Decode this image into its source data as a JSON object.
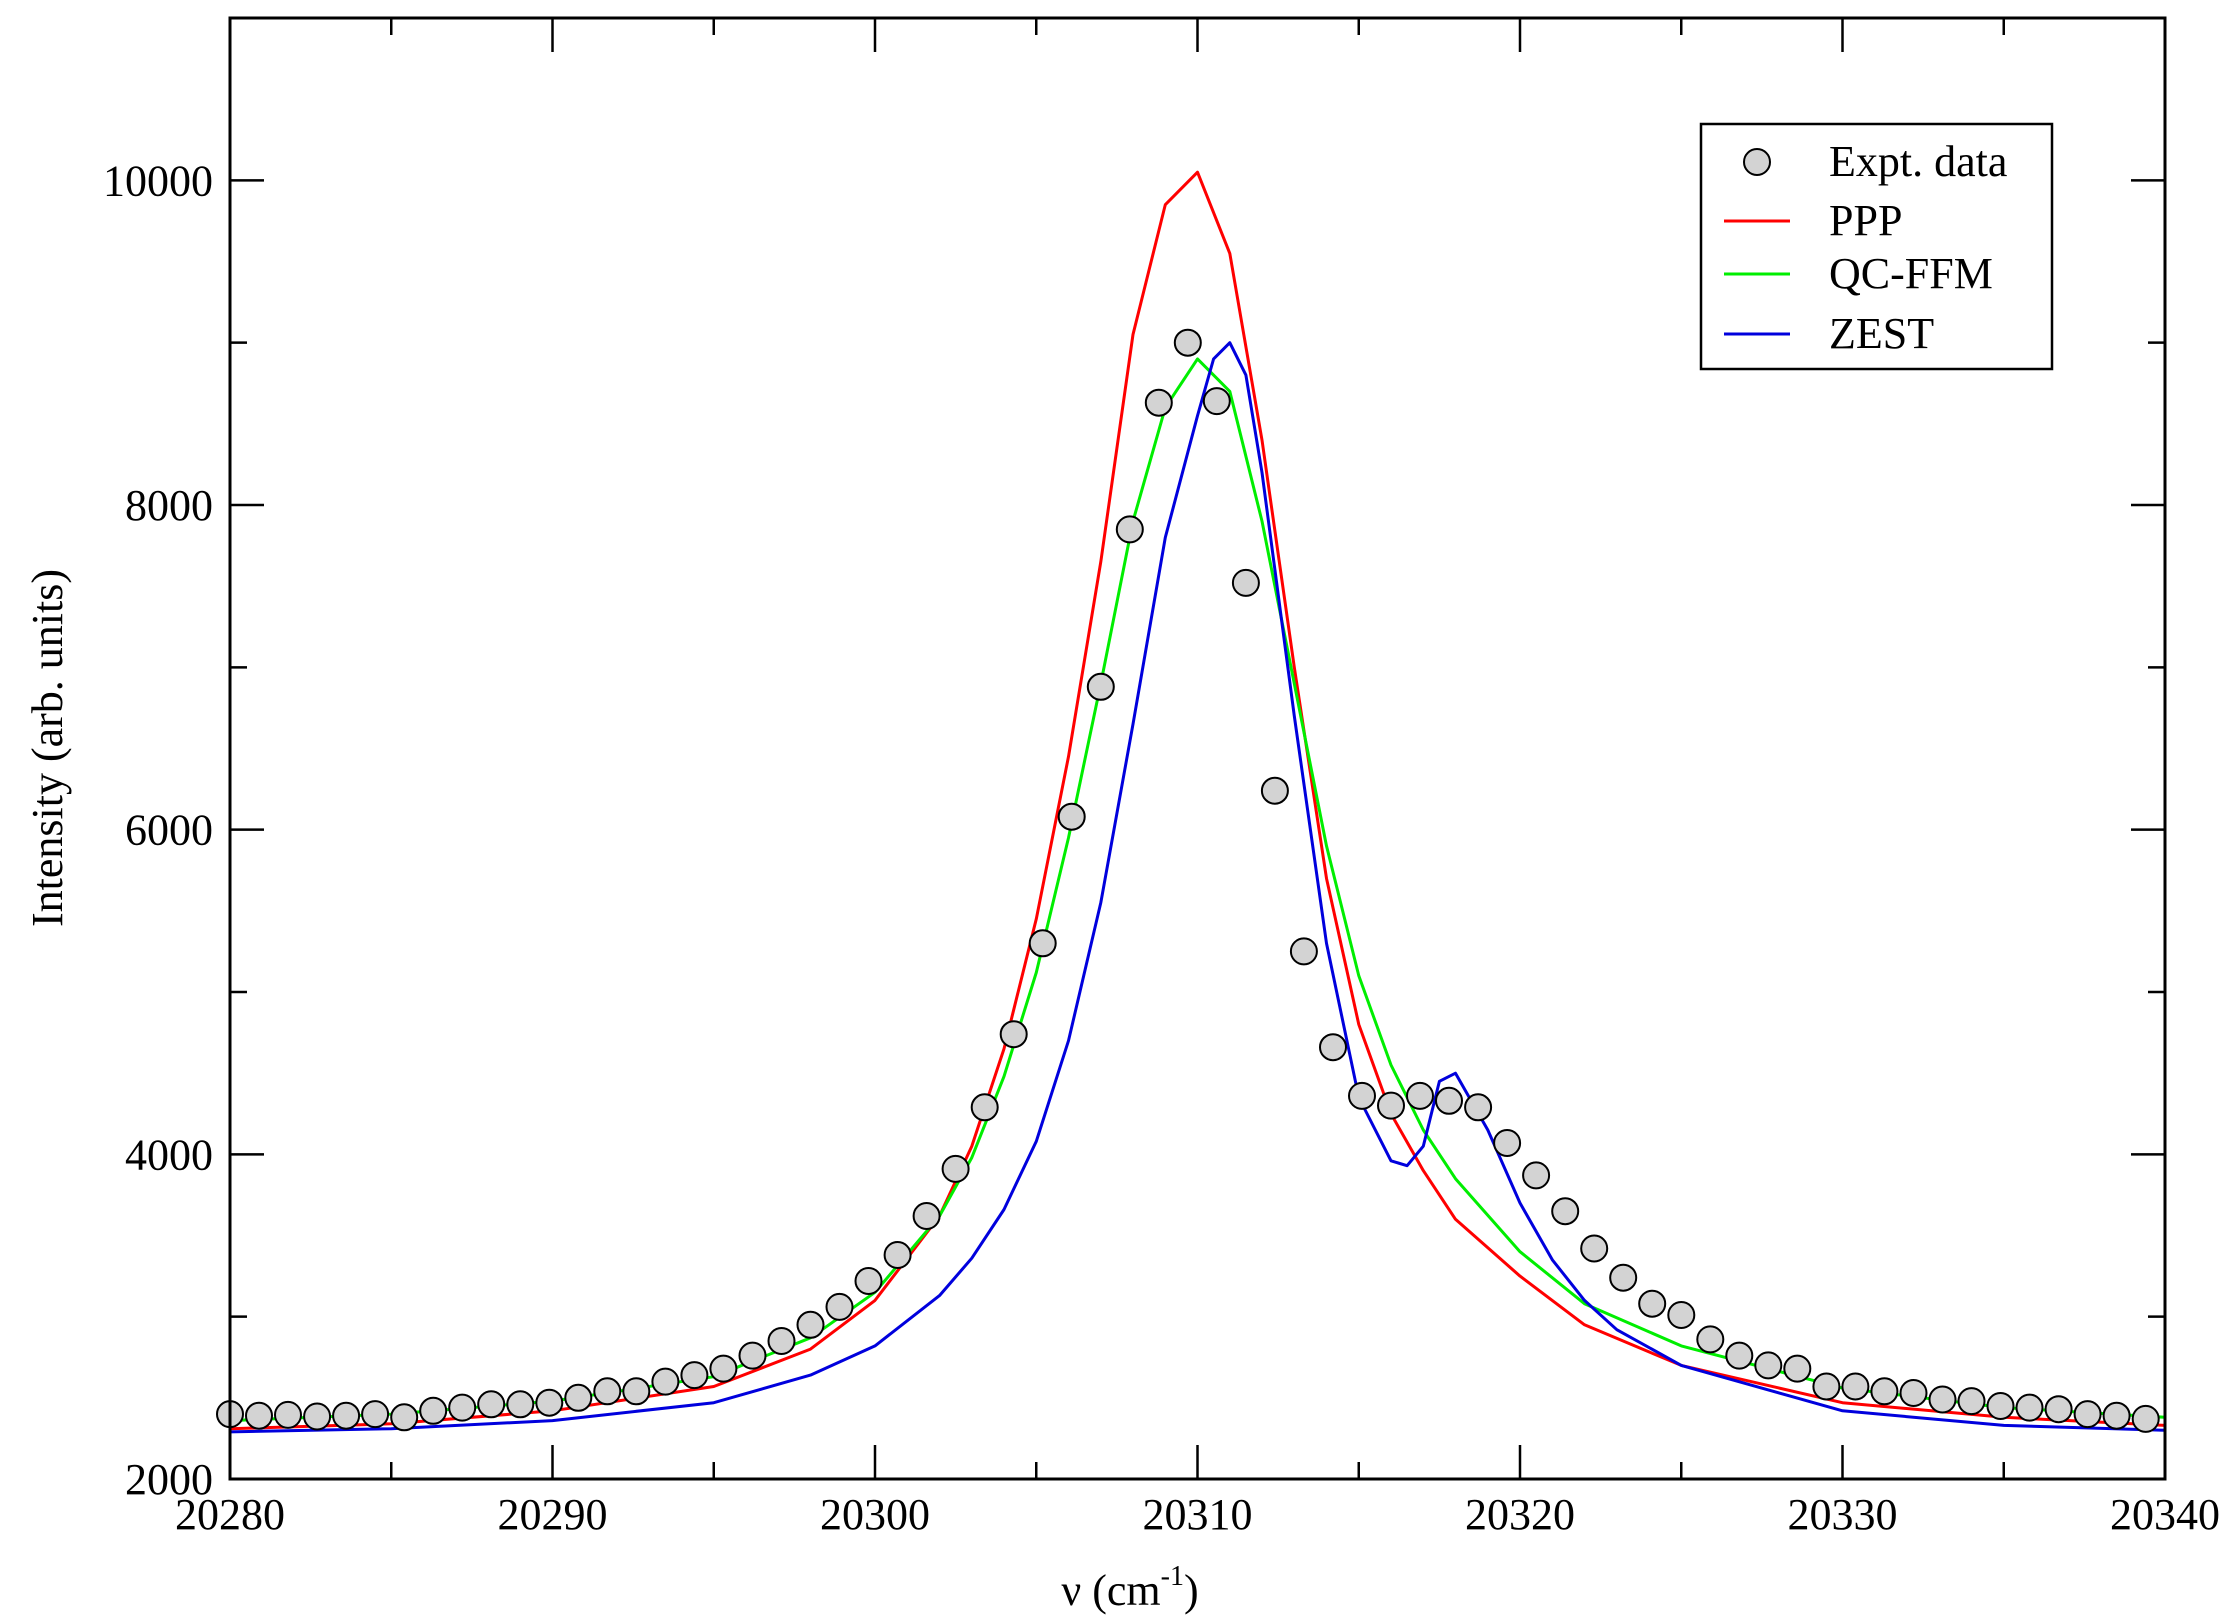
{
  "chart_data": {
    "type": "line",
    "xlabel_main": "ν (cm",
    "xlabel_sup": "-1",
    "xlabel_end": ")",
    "ylabel": "Intensity (arb. units)",
    "xlim": [
      20280,
      20340
    ],
    "ylim": [
      2000,
      11000
    ],
    "xticks": [
      20280,
      20290,
      20300,
      20310,
      20320,
      20330,
      20340
    ],
    "yticks": [
      2000,
      4000,
      6000,
      8000,
      10000
    ],
    "legend_position": "top-right",
    "grid": false,
    "series": [
      {
        "name": "Expt. data",
        "kind": "markers",
        "color": "#d3d3d3",
        "points": [
          [
            20280.0,
            2400
          ],
          [
            20280.9,
            2390
          ],
          [
            20281.8,
            2395
          ],
          [
            20282.7,
            2385
          ],
          [
            20283.6,
            2390
          ],
          [
            20284.5,
            2400
          ],
          [
            20285.4,
            2380
          ],
          [
            20286.3,
            2420
          ],
          [
            20287.2,
            2440
          ],
          [
            20288.1,
            2460
          ],
          [
            20289.0,
            2460
          ],
          [
            20289.9,
            2470
          ],
          [
            20290.8,
            2500
          ],
          [
            20291.7,
            2540
          ],
          [
            20292.6,
            2540
          ],
          [
            20293.5,
            2600
          ],
          [
            20294.4,
            2640
          ],
          [
            20295.3,
            2680
          ],
          [
            20296.2,
            2760
          ],
          [
            20297.1,
            2850
          ],
          [
            20298.0,
            2950
          ],
          [
            20298.9,
            3060
          ],
          [
            20299.8,
            3220
          ],
          [
            20300.7,
            3380
          ],
          [
            20301.6,
            3620
          ],
          [
            20302.5,
            3910
          ],
          [
            20303.4,
            4290
          ],
          [
            20304.3,
            4740
          ],
          [
            20305.2,
            5300
          ],
          [
            20306.1,
            6080
          ],
          [
            20307.0,
            6880
          ],
          [
            20307.9,
            7850
          ],
          [
            20308.8,
            8630
          ],
          [
            20309.7,
            9000
          ],
          [
            20310.6,
            8640
          ],
          [
            20311.5,
            7520
          ],
          [
            20312.4,
            6240
          ],
          [
            20313.3,
            5250
          ],
          [
            20314.2,
            4660
          ],
          [
            20315.1,
            4360
          ],
          [
            20316.0,
            4300
          ],
          [
            20316.9,
            4360
          ],
          [
            20317.8,
            4330
          ],
          [
            20318.7,
            4290
          ],
          [
            20319.6,
            4070
          ],
          [
            20320.5,
            3870
          ],
          [
            20321.4,
            3650
          ],
          [
            20322.3,
            3420
          ],
          [
            20323.2,
            3240
          ],
          [
            20324.1,
            3080
          ],
          [
            20325.0,
            3010
          ],
          [
            20325.9,
            2860
          ],
          [
            20326.8,
            2760
          ],
          [
            20327.7,
            2700
          ],
          [
            20328.6,
            2680
          ],
          [
            20329.5,
            2570
          ],
          [
            20330.4,
            2570
          ],
          [
            20331.3,
            2540
          ],
          [
            20332.2,
            2530
          ],
          [
            20333.1,
            2490
          ],
          [
            20334.0,
            2480
          ],
          [
            20334.9,
            2450
          ],
          [
            20335.8,
            2440
          ],
          [
            20336.7,
            2430
          ],
          [
            20337.6,
            2400
          ],
          [
            20338.5,
            2390
          ],
          [
            20339.4,
            2370
          ]
        ]
      },
      {
        "name": "PPP",
        "kind": "line",
        "color": "#ff0000",
        "points": [
          [
            20280,
            2310
          ],
          [
            20285,
            2340
          ],
          [
            20290,
            2420
          ],
          [
            20295,
            2570
          ],
          [
            20298,
            2800
          ],
          [
            20300,
            3100
          ],
          [
            20302,
            3620
          ],
          [
            20303,
            4050
          ],
          [
            20304,
            4650
          ],
          [
            20305,
            5450
          ],
          [
            20306,
            6450
          ],
          [
            20307,
            7650
          ],
          [
            20308,
            9050
          ],
          [
            20309,
            9850
          ],
          [
            20310,
            10050
          ],
          [
            20311,
            9550
          ],
          [
            20312,
            8400
          ],
          [
            20313,
            7000
          ],
          [
            20314,
            5700
          ],
          [
            20315,
            4800
          ],
          [
            20316,
            4250
          ],
          [
            20317,
            3900
          ],
          [
            20318,
            3600
          ],
          [
            20320,
            3250
          ],
          [
            20322,
            2950
          ],
          [
            20325,
            2700
          ],
          [
            20330,
            2470
          ],
          [
            20335,
            2380
          ],
          [
            20340,
            2330
          ]
        ]
      },
      {
        "name": "QC-FFM",
        "kind": "line",
        "color": "#00ee00",
        "points": [
          [
            20280,
            2360
          ],
          [
            20285,
            2400
          ],
          [
            20290,
            2480
          ],
          [
            20295,
            2630
          ],
          [
            20298,
            2870
          ],
          [
            20300,
            3150
          ],
          [
            20302,
            3620
          ],
          [
            20303,
            3980
          ],
          [
            20304,
            4480
          ],
          [
            20305,
            5120
          ],
          [
            20306,
            5950
          ],
          [
            20307,
            6900
          ],
          [
            20308,
            7900
          ],
          [
            20309,
            8600
          ],
          [
            20310,
            8900
          ],
          [
            20311,
            8700
          ],
          [
            20312,
            7900
          ],
          [
            20313,
            6900
          ],
          [
            20314,
            5900
          ],
          [
            20315,
            5100
          ],
          [
            20316,
            4550
          ],
          [
            20317,
            4150
          ],
          [
            20318,
            3850
          ],
          [
            20320,
            3400
          ],
          [
            20322,
            3080
          ],
          [
            20325,
            2820
          ],
          [
            20330,
            2560
          ],
          [
            20335,
            2440
          ],
          [
            20340,
            2380
          ]
        ]
      },
      {
        "name": "ZEST",
        "kind": "line",
        "color": "#0000dd",
        "points": [
          [
            20280,
            2290
          ],
          [
            20285,
            2310
          ],
          [
            20290,
            2360
          ],
          [
            20295,
            2470
          ],
          [
            20298,
            2640
          ],
          [
            20300,
            2820
          ],
          [
            20302,
            3130
          ],
          [
            20303,
            3360
          ],
          [
            20304,
            3660
          ],
          [
            20305,
            4080
          ],
          [
            20306,
            4700
          ],
          [
            20307,
            5550
          ],
          [
            20308,
            6650
          ],
          [
            20309,
            7800
          ],
          [
            20310,
            8550
          ],
          [
            20310.5,
            8900
          ],
          [
            20311,
            9000
          ],
          [
            20311.5,
            8800
          ],
          [
            20312,
            8200
          ],
          [
            20313,
            6700
          ],
          [
            20314,
            5300
          ],
          [
            20315,
            4350
          ],
          [
            20316,
            3960
          ],
          [
            20316.5,
            3930
          ],
          [
            20317,
            4050
          ],
          [
            20317.5,
            4450
          ],
          [
            20318,
            4500
          ],
          [
            20319,
            4150
          ],
          [
            20320,
            3700
          ],
          [
            20321,
            3350
          ],
          [
            20322,
            3100
          ],
          [
            20323,
            2920
          ],
          [
            20325,
            2700
          ],
          [
            20330,
            2420
          ],
          [
            20335,
            2330
          ],
          [
            20340,
            2300
          ]
        ]
      }
    ]
  }
}
